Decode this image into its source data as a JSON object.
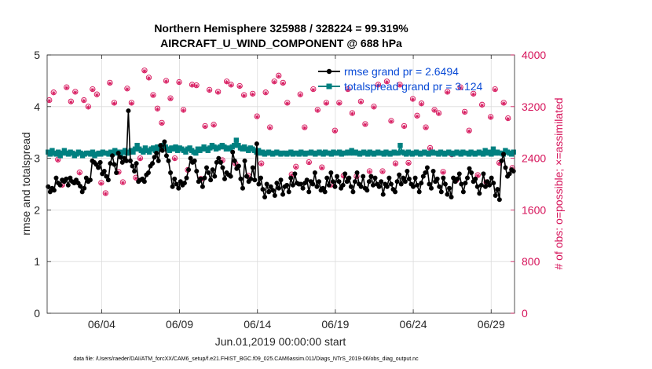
{
  "chart_data": {
    "type": "line",
    "title_line1": "Northern Hemisphere 325988 / 328224 = 99.319%",
    "title_line2": "AIRCRAFT_U_WIND_COMPONENT @ 688 hPa",
    "xlabel": "Jun.01,2019 00:00:00 start",
    "ylabel_left": "rmse and totalspread",
    "ylabel_right": "# of obs: o=possible; ×=assimilated",
    "footnote": "data file: /Users/raeder/DAI/ATM_forcXX/CAM6_setup/f.e21.FHIST_BGC.f09_025.CAM6assim.011/Diags_NTrS_2019-06/obs_diag_output.nc",
    "xlim": [
      0.5,
      30.5
    ],
    "x_ticks": [
      {
        "x": 4,
        "label": "06/04"
      },
      {
        "x": 9,
        "label": "06/09"
      },
      {
        "x": 14,
        "label": "06/14"
      },
      {
        "x": 19,
        "label": "06/19"
      },
      {
        "x": 24,
        "label": "06/24"
      },
      {
        "x": 29,
        "label": "06/29"
      }
    ],
    "ylim_left": [
      0,
      5
    ],
    "yticks_left": [
      0,
      1,
      2,
      3,
      4,
      5
    ],
    "ylim_right": [
      0,
      4000
    ],
    "yticks_right": [
      0,
      800,
      1600,
      2400,
      3200,
      4000
    ],
    "legend": [
      {
        "label": "rmse grand pr = 2.6494",
        "color": "#000000"
      },
      {
        "label": "totalspread grand pr = 3.124",
        "color": "#008080"
      }
    ],
    "colors": {
      "rmse": "#000000",
      "spread": "#008080",
      "obs": "#d6135a",
      "legend_text": "#0a4bd6"
    },
    "series": [
      {
        "name": "rmse",
        "values": [
          2.45,
          2.35,
          2.42,
          2.38,
          2.62,
          2.52,
          2.48,
          2.58,
          2.55,
          2.6,
          2.48,
          2.62,
          2.55,
          2.52,
          2.58,
          2.52,
          2.46,
          2.35,
          2.42,
          2.62,
          2.55,
          2.58,
          2.95,
          2.92,
          2.88,
          2.82,
          2.92,
          2.7,
          2.75,
          2.65,
          2.58,
          2.9,
          3.05,
          2.88,
          2.72,
          3.1,
          3.02,
          2.92,
          3.0,
          2.95,
          3.92,
          2.95,
          2.85,
          2.75,
          2.9,
          2.55,
          2.58,
          2.6,
          2.55,
          2.68,
          2.72,
          2.85,
          2.9,
          3.02,
          3.1,
          2.95,
          3.25,
          3.15,
          3.32,
          3.05,
          2.95,
          2.72,
          2.45,
          2.6,
          2.5,
          2.42,
          2.55,
          2.48,
          2.52,
          2.62,
          2.78,
          3.0,
          2.92,
          2.95,
          2.75,
          2.55,
          2.6,
          2.45,
          2.62,
          2.82,
          2.72,
          2.58,
          2.78,
          2.65,
          2.92,
          3.0,
          2.92,
          2.82,
          2.6,
          2.72,
          2.68,
          2.65,
          3.12,
          2.95,
          2.8,
          2.85,
          2.6,
          2.42,
          2.95,
          2.65,
          2.55,
          2.6,
          2.82,
          2.58,
          3.28,
          2.5,
          2.62,
          2.4,
          2.25,
          2.5,
          2.35,
          2.45,
          2.38,
          2.28,
          2.52,
          2.42,
          2.58,
          2.3,
          2.45,
          2.48,
          2.35,
          2.62,
          2.48,
          2.7,
          2.52,
          2.5,
          2.5,
          2.42,
          2.52,
          2.58,
          2.35,
          2.55,
          2.5,
          2.72,
          2.45,
          2.55,
          2.38,
          2.42,
          2.35,
          2.62,
          2.48,
          2.72,
          2.55,
          2.45,
          2.65,
          2.55,
          2.42,
          2.48,
          2.7,
          2.55,
          2.62,
          2.45,
          2.35,
          2.55,
          2.72,
          2.5,
          2.45,
          2.65,
          2.42,
          2.38,
          2.55,
          2.65,
          2.48,
          2.62,
          2.5,
          2.45,
          2.55,
          2.3,
          2.5,
          2.45,
          2.62,
          2.5,
          2.4,
          2.35,
          2.55,
          2.68,
          2.5,
          2.62,
          2.55,
          2.75,
          2.6,
          2.5,
          2.45,
          2.62,
          2.48,
          2.35,
          2.52,
          2.65,
          2.72,
          2.82,
          2.5,
          2.42,
          2.75,
          2.55,
          2.6,
          2.45,
          2.35,
          2.62,
          2.5,
          2.3,
          2.42,
          2.25,
          2.62,
          2.55,
          2.6,
          2.7,
          2.5,
          2.35,
          2.52,
          2.62,
          2.8,
          2.72,
          2.55,
          2.6,
          2.45,
          2.32,
          2.48,
          2.7,
          2.45,
          2.55,
          2.48,
          2.62,
          2.52,
          2.28,
          2.4,
          2.2,
          2.95,
          3.08,
          2.82,
          2.65,
          2.7,
          2.78,
          2.75
        ]
      },
      {
        "name": "totalspread",
        "values": [
          3.12,
          3.08,
          3.15,
          3.1,
          3.08,
          3.12,
          3.05,
          3.1,
          3.15,
          3.1,
          3.08,
          3.12,
          3.1,
          3.05,
          3.08,
          3.12,
          3.1,
          3.05,
          3.08,
          3.1,
          3.1,
          3.08,
          3.12,
          3.05,
          3.08,
          3.1,
          3.08,
          3.12,
          3.1,
          3.1,
          3.08,
          3.12,
          3.1,
          3.15,
          3.1,
          3.12,
          3.08,
          3.12,
          3.15,
          3.1,
          3.12,
          3.15,
          3.12,
          3.18,
          3.25,
          3.18,
          3.15,
          3.12,
          3.2,
          3.15,
          3.12,
          3.18,
          3.2,
          3.15,
          3.22,
          3.18,
          3.2,
          3.25,
          3.22,
          3.18,
          3.15,
          3.2,
          3.18,
          3.22,
          3.15,
          3.2,
          3.18,
          3.15,
          3.12,
          3.18,
          3.2,
          3.15,
          3.12,
          3.1,
          3.18,
          3.15,
          3.18,
          3.22,
          3.18,
          3.15,
          3.2,
          3.25,
          3.22,
          3.18,
          3.2,
          3.22,
          3.25,
          3.22,
          3.18,
          3.2,
          3.18,
          3.22,
          3.25,
          3.35,
          3.25,
          3.2,
          3.18,
          3.22,
          3.18,
          3.15,
          3.2,
          3.18,
          3.15,
          3.12,
          3.15,
          3.1,
          3.12,
          3.08,
          3.1,
          3.12,
          3.1,
          3.08,
          3.1,
          3.12,
          3.1,
          3.08,
          3.1,
          3.1,
          3.08,
          3.1,
          3.12,
          3.08,
          3.1,
          3.1,
          3.08,
          3.12,
          3.1,
          3.08,
          3.1,
          3.1,
          3.12,
          3.1,
          3.08,
          3.1,
          3.12,
          3.1,
          3.08,
          3.12,
          3.1,
          3.1,
          3.08,
          3.12,
          3.1,
          3.1,
          3.12,
          3.08,
          3.1,
          3.1,
          3.12,
          3.1,
          3.15,
          3.1,
          3.12,
          3.1,
          3.08,
          3.1,
          3.12,
          3.1,
          3.08,
          3.12,
          3.1,
          3.08,
          3.1,
          3.12,
          3.1,
          3.1,
          3.08,
          3.12,
          3.1,
          3.08,
          3.1,
          3.12,
          3.1,
          3.1,
          3.25,
          3.12,
          3.1,
          3.08,
          3.12,
          3.1,
          3.08,
          3.1,
          3.12,
          3.1,
          3.08,
          3.1,
          3.12,
          3.1,
          3.08,
          3.1,
          3.12,
          3.1,
          3.1,
          3.08,
          3.12,
          3.1,
          3.08,
          3.1,
          3.12,
          3.1,
          3.08,
          3.1,
          3.12,
          3.1,
          3.08,
          3.12,
          3.1,
          3.1,
          3.08,
          3.12,
          3.1,
          3.08,
          3.1,
          3.12,
          3.1,
          3.08,
          3.15,
          3.1,
          3.12,
          3.08,
          3.18,
          3.1,
          3.12,
          3.1,
          3.1,
          3.08,
          3.15,
          3.12,
          3.1,
          3.08,
          3.12
        ]
      },
      {
        "name": "obs_possible",
        "values": [
          3300,
          3420,
          2380,
          1990,
          3500,
          3280,
          3430,
          2180,
          3300,
          3200,
          3470,
          3390,
          2020,
          1860,
          3570,
          3260,
          2190,
          2030,
          3480,
          3260,
          2100,
          2400,
          3760,
          3650,
          3380,
          3170,
          2950,
          3600,
          3330,
          2400,
          3580,
          3150,
          2220,
          3540,
          3530,
          2080,
          2900,
          3460,
          2920,
          3430,
          2370,
          3590,
          3540,
          2320,
          3520,
          3380,
          2130,
          3400,
          3050,
          2320,
          3420,
          2880,
          3590,
          3680,
          3570,
          3260,
          2150,
          2270,
          3390,
          2880,
          2340,
          3470,
          3150,
          2260,
          3260,
          1990,
          2830,
          3260,
          2130,
          3470,
          3100,
          2120,
          3280,
          2930,
          2200,
          3200,
          3540,
          2200,
          3590,
          2980,
          2320,
          3540,
          2900,
          2330,
          3320,
          3060,
          3250,
          2880,
          2560,
          3150,
          3100,
          2190,
          3430,
          2460,
          2060,
          3500,
          3120,
          2830,
          3400,
          2140,
          3230,
          2030,
          3040,
          3470,
          2330,
          3260,
          3020,
          2250
        ]
      },
      {
        "name": "obs_assimilated",
        "values": [
          3290,
          3410,
          2370,
          1980,
          3490,
          3270,
          3420,
          2170,
          3290,
          3190,
          3460,
          3380,
          2010,
          1850,
          3560,
          3250,
          2180,
          2020,
          3470,
          3250,
          2090,
          2390,
          3750,
          3640,
          3370,
          3160,
          2940,
          3590,
          3320,
          2390,
          3570,
          3140,
          2210,
          3530,
          3520,
          2070,
          2890,
          3450,
          2910,
          3420,
          2360,
          3580,
          3530,
          2310,
          3510,
          3370,
          2120,
          3390,
          3040,
          2310,
          3410,
          2870,
          3580,
          3670,
          3560,
          3250,
          2140,
          2260,
          3380,
          2870,
          2330,
          3460,
          3140,
          2250,
          3250,
          1980,
          2820,
          3250,
          2120,
          3460,
          3090,
          2110,
          3270,
          2920,
          2190,
          3190,
          3530,
          2190,
          3580,
          2970,
          2310,
          3530,
          2890,
          2320,
          3310,
          3050,
          3240,
          2870,
          2550,
          3140,
          3090,
          2180,
          3420,
          2450,
          2050,
          3490,
          3110,
          2820,
          3390,
          2130,
          3220,
          2020,
          3030,
          3460,
          2320,
          3250,
          3010,
          2240
        ]
      }
    ]
  }
}
